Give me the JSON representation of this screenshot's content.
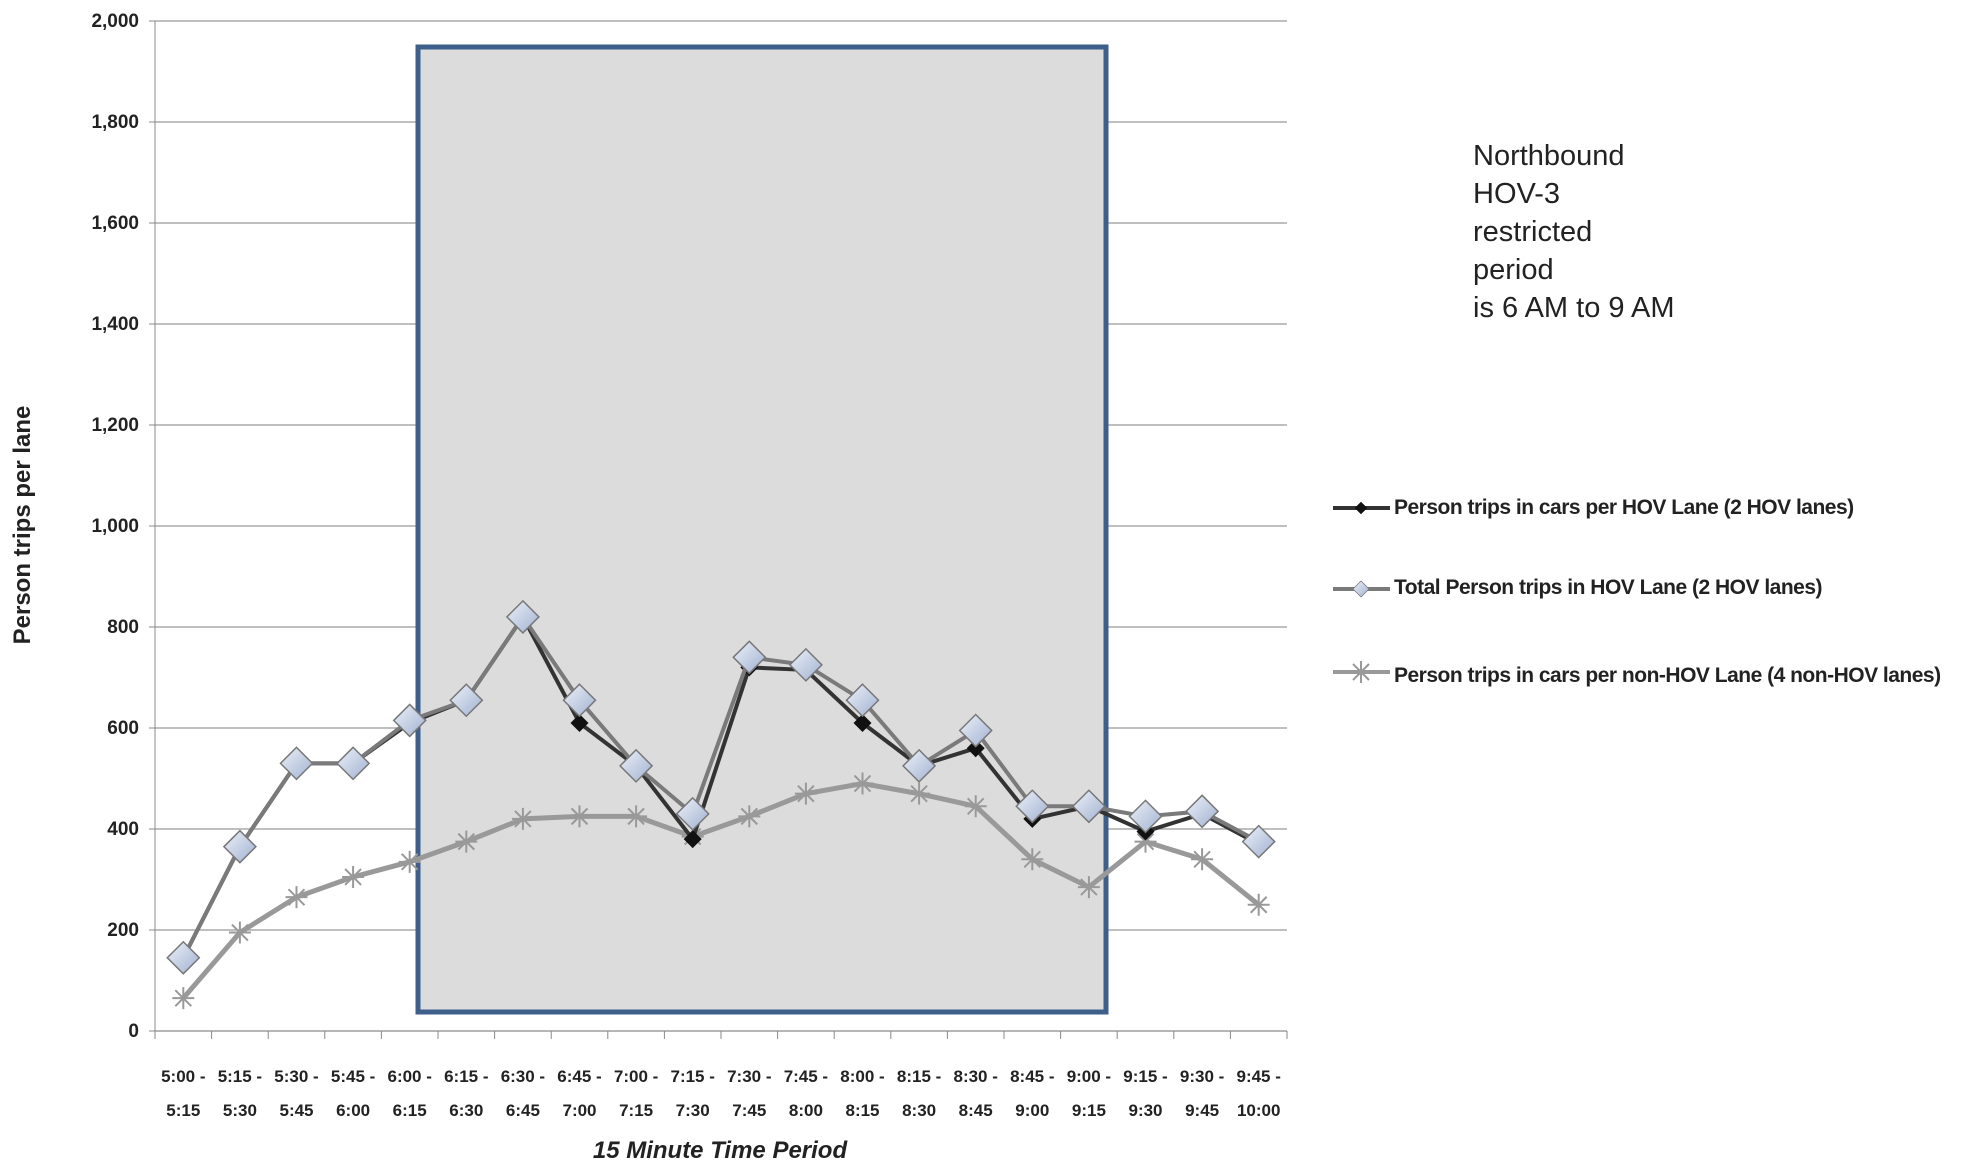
{
  "chart_data": {
    "type": "line",
    "categories": [
      [
        "5:00 -",
        "5:15"
      ],
      [
        "5:15 -",
        "5:30"
      ],
      [
        "5:30 -",
        "5:45"
      ],
      [
        "5:45 -",
        "6:00"
      ],
      [
        "6:00 -",
        "6:15"
      ],
      [
        "6:15 -",
        "6:30"
      ],
      [
        "6:30 -",
        "6:45"
      ],
      [
        "6:45 -",
        "7:00"
      ],
      [
        "7:00 -",
        "7:15"
      ],
      [
        "7:15 -",
        "7:30"
      ],
      [
        "7:30 -",
        "7:45"
      ],
      [
        "7:45 -",
        "8:00"
      ],
      [
        "8:00 -",
        "8:15"
      ],
      [
        "8:15 -",
        "8:30"
      ],
      [
        "8:30 -",
        "8:45"
      ],
      [
        "8:45 -",
        "9:00"
      ],
      [
        "9:00 -",
        "9:15"
      ],
      [
        "9:15 -",
        "9:30"
      ],
      [
        "9:30 -",
        "9:45"
      ],
      [
        "9:45 -",
        "10:00"
      ]
    ],
    "series": [
      {
        "name": "Person trips in cars per HOV Lane (2 HOV lanes)",
        "color": "#333333",
        "marker": "diamond-small",
        "values": [
          145,
          365,
          530,
          530,
          610,
          655,
          820,
          610,
          525,
          380,
          720,
          715,
          610,
          525,
          560,
          420,
          445,
          395,
          430,
          370
        ]
      },
      {
        "name": "Total Person trips in HOV Lane (2 HOV lanes)",
        "color": "#7a7a7a",
        "marker": "diamond-large",
        "values": [
          145,
          365,
          530,
          530,
          615,
          655,
          820,
          655,
          525,
          430,
          740,
          725,
          655,
          525,
          595,
          445,
          445,
          425,
          435,
          375
        ]
      },
      {
        "name": "Person trips in cars per non-HOV Lane (4 non-HOV lanes)",
        "color": "#999999",
        "marker": "star",
        "values": [
          65,
          195,
          265,
          305,
          335,
          375,
          420,
          425,
          425,
          385,
          425,
          470,
          490,
          470,
          445,
          340,
          285,
          375,
          340,
          250
        ]
      }
    ],
    "ylim": [
      0,
      2000
    ],
    "yticks": [
      0,
      200,
      400,
      600,
      800,
      {
        "value": 1000,
        "label": "1,000"
      },
      {
        "value": 1200,
        "label": "1,200"
      },
      {
        "value": 1400,
        "label": "1,400"
      },
      {
        "value": 1600,
        "label": "1,600"
      },
      {
        "value": 1800,
        "label": "1,800"
      },
      {
        "value": 2000,
        "label": "2,000"
      }
    ],
    "grid": true,
    "x_label": "15 Minute Time Period",
    "y_label": "Person trips per lane",
    "annotation": [
      "Northbound",
      "HOV-3",
      "restricted",
      "period",
      "is 6 AM to 9 AM"
    ]
  }
}
